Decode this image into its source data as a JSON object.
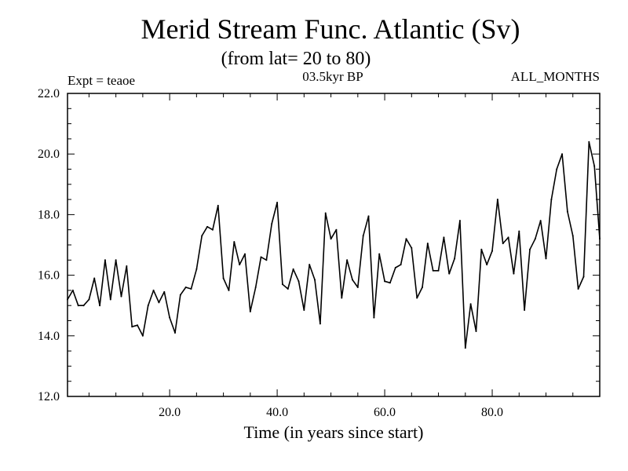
{
  "chart_data": {
    "type": "line",
    "title": "Merid Stream Func. Atlantic (Sv)",
    "subtitle": "(from lat= 20 to 80)",
    "left_label": "Expt = teaoe",
    "center_label": "03.5kyr BP",
    "right_label": "ALL_MONTHS",
    "xlabel": "Time (in years since start)",
    "ylabel": "",
    "xlim": [
      1,
      100
    ],
    "ylim": [
      12.0,
      22.0
    ],
    "x_major_ticks": [
      20,
      40,
      60,
      80
    ],
    "x_tick_labels": [
      "20.0",
      "40.0",
      "60.0",
      "80.0"
    ],
    "y_major_ticks": [
      12,
      14,
      16,
      18,
      20,
      22
    ],
    "y_tick_labels": [
      "12.0",
      "14.0",
      "16.0",
      "18.0",
      "20.0",
      "22.0"
    ],
    "grid": false,
    "series": [
      {
        "name": "Merid Stream Func. Atlantic",
        "x": [
          1,
          2,
          3,
          4,
          5,
          6,
          7,
          8,
          9,
          10,
          11,
          12,
          13,
          14,
          15,
          16,
          17,
          18,
          19,
          20,
          21,
          22,
          23,
          24,
          25,
          26,
          27,
          28,
          29,
          30,
          31,
          32,
          33,
          34,
          35,
          36,
          37,
          38,
          39,
          40,
          41,
          42,
          43,
          44,
          45,
          46,
          47,
          48,
          49,
          50,
          51,
          52,
          53,
          54,
          55,
          56,
          57,
          58,
          59,
          60,
          61,
          62,
          63,
          64,
          65,
          66,
          67,
          68,
          69,
          70,
          71,
          72,
          73,
          74,
          75,
          76,
          77,
          78,
          79,
          80,
          81,
          82,
          83,
          84,
          85,
          86,
          87,
          88,
          89,
          90,
          91,
          92,
          93,
          94,
          95,
          96,
          97,
          98,
          99,
          100
        ],
        "values": [
          15.2,
          15.5,
          15.0,
          15.0,
          15.2,
          15.9,
          15.0,
          16.5,
          15.2,
          16.5,
          15.3,
          16.3,
          14.3,
          14.35,
          14.0,
          15.0,
          15.5,
          15.1,
          15.45,
          14.6,
          14.1,
          15.35,
          15.6,
          15.55,
          16.2,
          17.3,
          17.6,
          17.5,
          18.3,
          15.9,
          15.5,
          17.1,
          16.35,
          16.7,
          14.8,
          15.6,
          16.6,
          16.5,
          17.7,
          18.4,
          15.7,
          15.55,
          16.2,
          15.8,
          14.85,
          16.35,
          15.85,
          14.4,
          18.05,
          17.2,
          17.5,
          15.25,
          16.5,
          15.85,
          15.6,
          17.3,
          17.95,
          14.6,
          16.7,
          15.8,
          15.75,
          16.25,
          16.35,
          17.2,
          16.9,
          15.25,
          15.6,
          17.05,
          16.15,
          16.15,
          17.25,
          16.05,
          16.55,
          17.8,
          13.6,
          15.05,
          14.15,
          16.85,
          16.35,
          16.8,
          18.5,
          17.05,
          17.25,
          16.05,
          17.45,
          14.85,
          16.85,
          17.2,
          17.8,
          16.55,
          18.5,
          19.5,
          20.0,
          18.1,
          17.3,
          15.55,
          15.95,
          20.4,
          19.6,
          17.2
        ]
      }
    ]
  }
}
